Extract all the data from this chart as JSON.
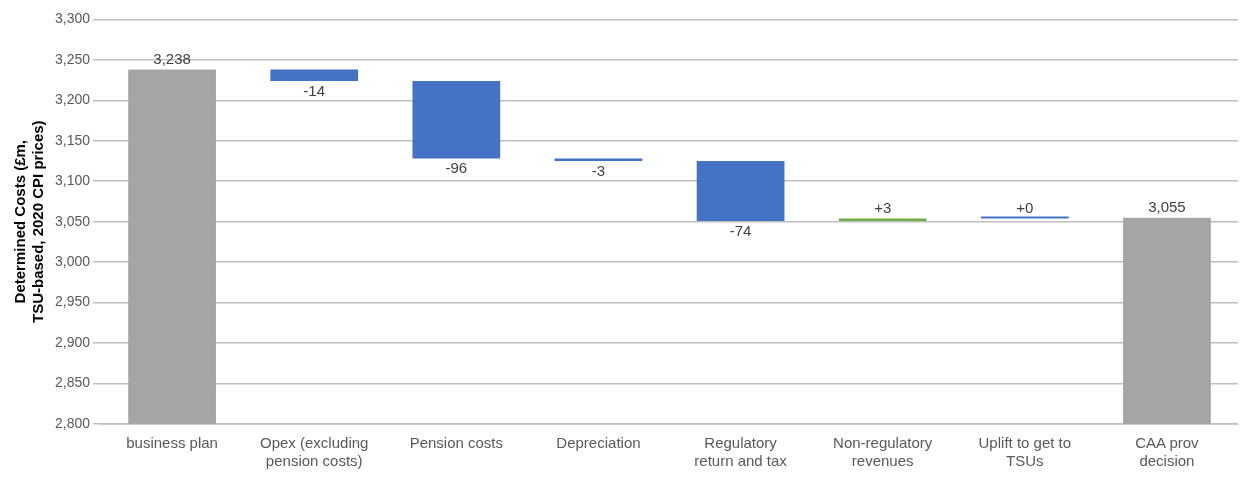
{
  "chart_data": {
    "type": "bar",
    "ylabel": "Determined Costs (£m, TSU-based, 2020 CPI prices)",
    "categories": [
      "business plan",
      "Opex (excluding pension costs)",
      "Pension costs",
      "Depreciation",
      "Regulatory return and tax",
      "Non-regulatory revenues",
      "Uplift to get to TSUs",
      "CAA prov decision"
    ],
    "values": [
      3238,
      -14,
      -96,
      -3,
      -74,
      3,
      0,
      3055
    ],
    "base": [
      null,
      3238,
      3224,
      3128,
      3125,
      3051,
      3054,
      null
    ],
    "colors": [
      "#a5a5a5",
      "#4472c4",
      "#4472c4",
      "#4472c4",
      "#4472c4",
      "#70ad47",
      "#4472c4",
      "#a5a5a5"
    ],
    "value_labels": [
      "3,238",
      "-14",
      "-96",
      "-3",
      "-74",
      "+3",
      "+0",
      "3,055"
    ],
    "ylim": [
      2800,
      3300
    ],
    "yticks": [
      {
        "value": 2800,
        "label": "2,800"
      },
      {
        "value": 2850,
        "label": "2,850"
      },
      {
        "value": 2900,
        "label": "2,900"
      },
      {
        "value": 2950,
        "label": "2,950"
      },
      {
        "value": 3000,
        "label": "3,000"
      },
      {
        "value": 3050,
        "label": "3,050"
      },
      {
        "value": 3100,
        "label": "3,100"
      },
      {
        "value": 3150,
        "label": "3,150"
      },
      {
        "value": 3200,
        "label": "3,200"
      },
      {
        "value": 3250,
        "label": "3,250"
      },
      {
        "value": 3300,
        "label": "3,300"
      }
    ],
    "grid": "y",
    "legend": false
  }
}
